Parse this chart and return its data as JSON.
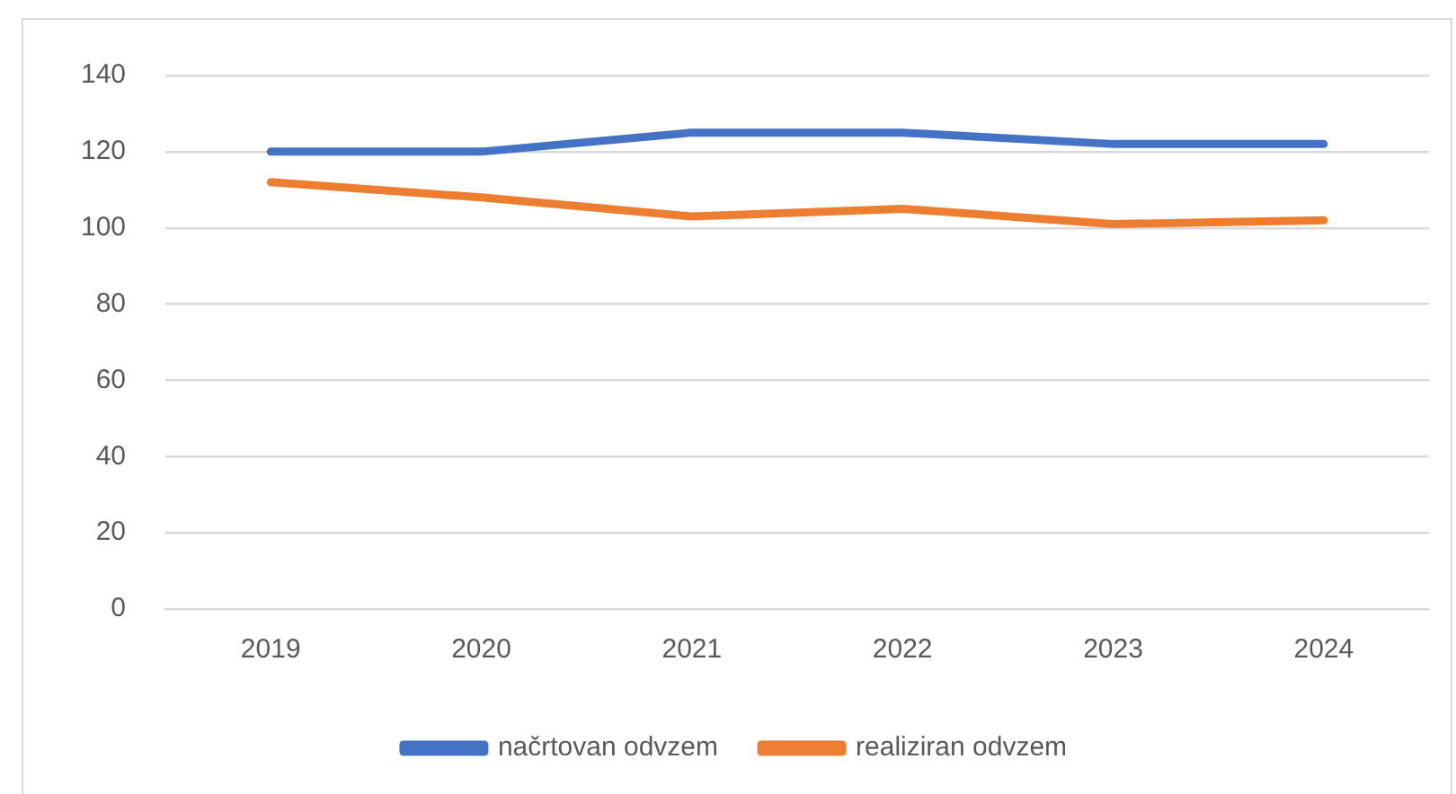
{
  "chart_data": {
    "type": "line",
    "categories": [
      "2019",
      "2020",
      "2021",
      "2022",
      "2023",
      "2024"
    ],
    "series": [
      {
        "name": "načrtovan odvzem",
        "color": "#4472c4",
        "values": [
          120,
          120,
          125,
          125,
          122,
          122
        ]
      },
      {
        "name": "realiziran odvzem",
        "color": "#ed7d31",
        "values": [
          112,
          108,
          103,
          105,
          101,
          102
        ]
      }
    ],
    "ylim": [
      0,
      140
    ],
    "yticks": [
      0,
      20,
      40,
      60,
      80,
      100,
      120,
      140
    ],
    "grid": "y",
    "legend": "bottom",
    "marker": "none",
    "line_style": "solid"
  }
}
